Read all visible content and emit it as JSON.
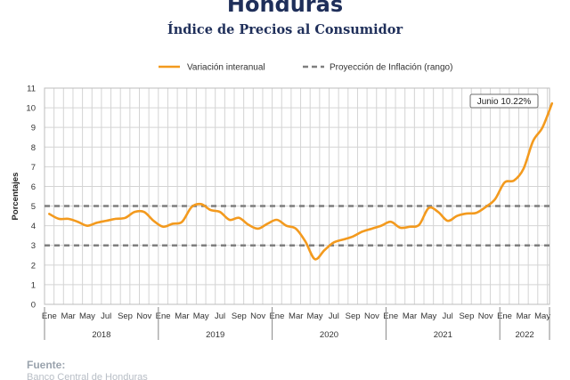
{
  "header": {
    "title": "Honduras",
    "subtitle": "Índice de Precios al Consumidor"
  },
  "footer": {
    "source_label": "Fuente:",
    "source_text": "Banco Central de Honduras"
  },
  "colors": {
    "series": "#f39a1e",
    "projection": "#7f7f7f",
    "grid": "#d4d4d4",
    "title": "#1f2f5a"
  },
  "chart_data": {
    "type": "line",
    "title": "Índice de Precios al Consumidor",
    "xlabel": "",
    "ylabel": "Porcentajes",
    "ylim": [
      0,
      11
    ],
    "yticks": [
      0,
      1,
      2,
      3,
      4,
      5,
      6,
      7,
      8,
      9,
      10,
      11
    ],
    "grid": true,
    "legend_position": "top",
    "month_labels": [
      "Ene",
      "Mar",
      "May",
      "Jul",
      "Sep",
      "Nov"
    ],
    "month_labels_2022": [
      "Ene",
      "Mar",
      "May"
    ],
    "years": [
      "2018",
      "2019",
      "2020",
      "2021",
      "2022"
    ],
    "x": [
      "2018-01",
      "2018-02",
      "2018-03",
      "2018-04",
      "2018-05",
      "2018-06",
      "2018-07",
      "2018-08",
      "2018-09",
      "2018-10",
      "2018-11",
      "2018-12",
      "2019-01",
      "2019-02",
      "2019-03",
      "2019-04",
      "2019-05",
      "2019-06",
      "2019-07",
      "2019-08",
      "2019-09",
      "2019-10",
      "2019-11",
      "2019-12",
      "2020-01",
      "2020-02",
      "2020-03",
      "2020-04",
      "2020-05",
      "2020-06",
      "2020-07",
      "2020-08",
      "2020-09",
      "2020-10",
      "2020-11",
      "2020-12",
      "2021-01",
      "2021-02",
      "2021-03",
      "2021-04",
      "2021-05",
      "2021-06",
      "2021-07",
      "2021-08",
      "2021-09",
      "2021-10",
      "2021-11",
      "2021-12",
      "2022-01",
      "2022-02",
      "2022-03",
      "2022-04",
      "2022-05",
      "2022-06"
    ],
    "series": [
      {
        "name": "Variación interanual",
        "values": [
          4.6,
          4.35,
          4.35,
          4.2,
          4.0,
          4.15,
          4.25,
          4.35,
          4.4,
          4.7,
          4.7,
          4.25,
          3.95,
          4.1,
          4.2,
          4.95,
          5.1,
          4.8,
          4.7,
          4.3,
          4.4,
          4.05,
          3.85,
          4.1,
          4.3,
          4.0,
          3.85,
          3.2,
          2.3,
          2.75,
          3.15,
          3.3,
          3.45,
          3.7,
          3.85,
          4.0,
          4.2,
          3.9,
          3.95,
          4.05,
          4.9,
          4.7,
          4.25,
          4.5,
          4.62,
          4.65,
          4.95,
          5.35,
          6.2,
          6.3,
          6.9,
          8.3,
          9.0,
          10.22
        ]
      },
      {
        "name": "Proyección de Inflación (rango)",
        "upper": 5,
        "lower": 3
      }
    ],
    "annotation": {
      "text": "Junio 10.22%",
      "x": "2022-06",
      "y": 10.22
    }
  }
}
